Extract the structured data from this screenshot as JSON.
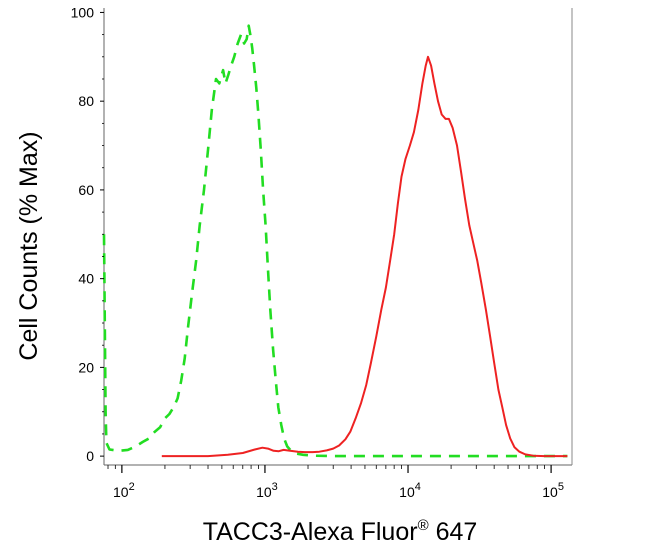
{
  "chart_data": {
    "type": "line",
    "xlabel": "TACC3-Alexa Fluor",
    "xlabel_sup": "®",
    "xlabel_tail": " 647",
    "ylabel": "Cell Counts (% Max)",
    "xscale": "log",
    "xlim": [
      75,
      140000
    ],
    "ylim": [
      -2,
      101
    ],
    "grid": false,
    "legend": "none",
    "x_ticks": [
      {
        "value": 100,
        "base": "10",
        "exp": "2"
      },
      {
        "value": 1000,
        "base": "10",
        "exp": "3"
      },
      {
        "value": 10000,
        "base": "10",
        "exp": "4"
      },
      {
        "value": 100000,
        "base": "10",
        "exp": "5"
      }
    ],
    "y_ticks": [
      {
        "value": 0,
        "label": "0"
      },
      {
        "value": 20,
        "label": "20"
      },
      {
        "value": 40,
        "label": "40"
      },
      {
        "value": 60,
        "label": "60"
      },
      {
        "value": 80,
        "label": "80"
      },
      {
        "value": 100,
        "label": "100"
      }
    ],
    "series": [
      {
        "color": "#22dd22",
        "style": "dashed",
        "points": [
          [
            75,
            50
          ],
          [
            76,
            30
          ],
          [
            77,
            10
          ],
          [
            78,
            3
          ],
          [
            82,
            1.5
          ],
          [
            95,
            1.2
          ],
          [
            110,
            1.4
          ],
          [
            125,
            2.2
          ],
          [
            140,
            3.2
          ],
          [
            155,
            4
          ],
          [
            170,
            5.5
          ],
          [
            185,
            6.5
          ],
          [
            200,
            8.5
          ],
          [
            215,
            9.5
          ],
          [
            230,
            11
          ],
          [
            245,
            13
          ],
          [
            260,
            17
          ],
          [
            275,
            22
          ],
          [
            290,
            29
          ],
          [
            310,
            37
          ],
          [
            330,
            44
          ],
          [
            350,
            52
          ],
          [
            375,
            60
          ],
          [
            400,
            69
          ],
          [
            425,
            78
          ],
          [
            455,
            85
          ],
          [
            480,
            84
          ],
          [
            510,
            87
          ],
          [
            530,
            84
          ],
          [
            555,
            86
          ],
          [
            580,
            88
          ],
          [
            610,
            90
          ],
          [
            645,
            93
          ],
          [
            680,
            95
          ],
          [
            715,
            93
          ],
          [
            745,
            94
          ],
          [
            770,
            97
          ],
          [
            790,
            95
          ],
          [
            815,
            92
          ],
          [
            840,
            88
          ],
          [
            870,
            83
          ],
          [
            900,
            77
          ],
          [
            935,
            69
          ],
          [
            970,
            60
          ],
          [
            1010,
            52
          ],
          [
            1050,
            42
          ],
          [
            1090,
            33
          ],
          [
            1140,
            24
          ],
          [
            1190,
            17
          ],
          [
            1240,
            11
          ],
          [
            1300,
            7
          ],
          [
            1360,
            4
          ],
          [
            1430,
            2.2
          ],
          [
            1520,
            1.2
          ],
          [
            1650,
            0.6
          ],
          [
            1850,
            0.3
          ],
          [
            2200,
            0.1
          ],
          [
            3000,
            0
          ],
          [
            6000,
            0
          ],
          [
            12000,
            0
          ],
          [
            25000,
            0
          ],
          [
            50000,
            0
          ],
          [
            90000,
            0
          ],
          [
            130000,
            0
          ]
        ]
      },
      {
        "color": "#ee2222",
        "style": "solid",
        "points": [
          [
            190,
            0
          ],
          [
            400,
            0
          ],
          [
            550,
            0.3
          ],
          [
            700,
            0.7
          ],
          [
            850,
            1.5
          ],
          [
            960,
            1.9
          ],
          [
            1050,
            1.7
          ],
          [
            1150,
            1.2
          ],
          [
            1250,
            1.1
          ],
          [
            1350,
            1.4
          ],
          [
            1500,
            1.2
          ],
          [
            1700,
            1
          ],
          [
            1900,
            0.9
          ],
          [
            2150,
            0.9
          ],
          [
            2400,
            1
          ],
          [
            2700,
            1.3
          ],
          [
            3000,
            1.7
          ],
          [
            3300,
            2.4
          ],
          [
            3650,
            3.8
          ],
          [
            3950,
            5.5
          ],
          [
            4300,
            8.5
          ],
          [
            4700,
            12
          ],
          [
            5100,
            16
          ],
          [
            5500,
            21
          ],
          [
            6000,
            27
          ],
          [
            6500,
            33
          ],
          [
            7000,
            38
          ],
          [
            7500,
            44
          ],
          [
            8000,
            50
          ],
          [
            8500,
            57
          ],
          [
            9000,
            63
          ],
          [
            9600,
            67
          ],
          [
            10300,
            70
          ],
          [
            11000,
            73
          ],
          [
            11800,
            78
          ],
          [
            12600,
            84
          ],
          [
            13300,
            88
          ],
          [
            13800,
            90
          ],
          [
            14500,
            88
          ],
          [
            15300,
            84
          ],
          [
            16200,
            80
          ],
          [
            17200,
            77
          ],
          [
            18300,
            76
          ],
          [
            19300,
            76
          ],
          [
            20500,
            74
          ],
          [
            22000,
            70
          ],
          [
            23500,
            64
          ],
          [
            25000,
            58
          ],
          [
            26800,
            52
          ],
          [
            28600,
            48
          ],
          [
            30500,
            44
          ],
          [
            32500,
            39
          ],
          [
            35000,
            33
          ],
          [
            37500,
            27
          ],
          [
            40000,
            21
          ],
          [
            42800,
            15
          ],
          [
            45600,
            11
          ],
          [
            48500,
            7
          ],
          [
            51800,
            4
          ],
          [
            55500,
            2
          ],
          [
            60000,
            1
          ],
          [
            66000,
            0.4
          ],
          [
            75000,
            0.1
          ],
          [
            90000,
            0
          ],
          [
            110000,
            0
          ],
          [
            130000,
            0
          ]
        ]
      }
    ]
  }
}
